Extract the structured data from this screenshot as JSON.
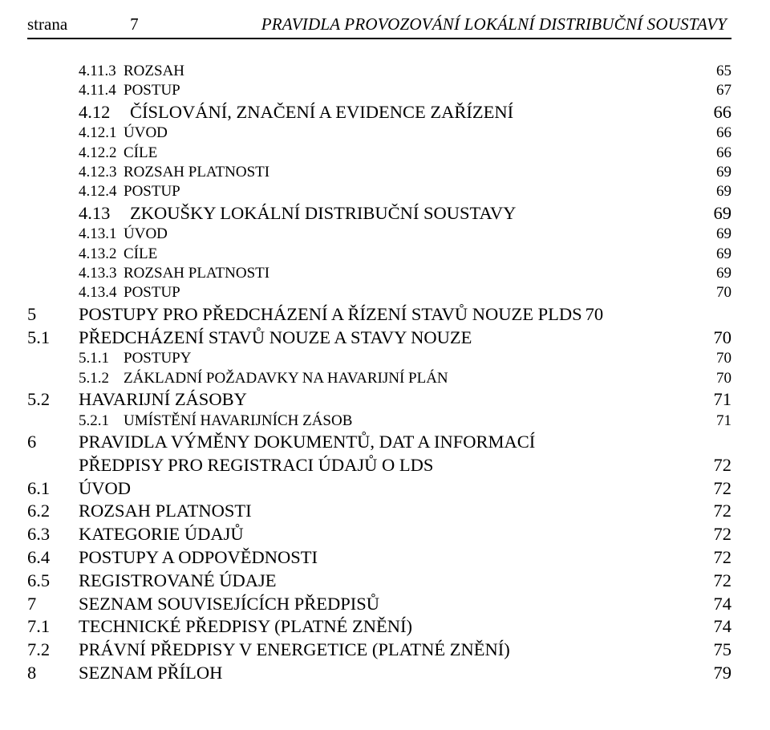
{
  "header": {
    "strana_label": "strana",
    "page_number": "7",
    "title": "PRAVIDLA PROVOZOVÁNÍ LOKÁLNÍ DISTRIBUČNÍ SOUSTAVY"
  },
  "toc": [
    {
      "level": 3,
      "num": "4.11.3",
      "text": "ROZSAH",
      "page": "65"
    },
    {
      "level": 3,
      "num": "4.11.4",
      "text": "POSTUP",
      "page": "67"
    },
    {
      "level": 2,
      "num": "4.12",
      "text": "ČÍSLOVÁNÍ, ZNAČENÍ A EVIDENCE ZAŘÍZENÍ",
      "page": "66"
    },
    {
      "level": 3,
      "num": "4.12.1",
      "text": "ÚVOD",
      "page": "66"
    },
    {
      "level": 3,
      "num": "4.12.2",
      "text": "CÍLE",
      "page": "66"
    },
    {
      "level": 3,
      "num": "4.12.3",
      "text": "ROZSAH PLATNOSTI",
      "page": "69"
    },
    {
      "level": 3,
      "num": "4.12.4",
      "text": "POSTUP",
      "page": "69"
    },
    {
      "level": 2,
      "num": "4.13",
      "text": "ZKOUŠKY LOKÁLNÍ DISTRIBUČNÍ SOUSTAVY",
      "page": "69"
    },
    {
      "level": 3,
      "num": "4.13.1",
      "text": "ÚVOD",
      "page": "69"
    },
    {
      "level": 3,
      "num": "4.13.2",
      "text": "CÍLE",
      "page": "69"
    },
    {
      "level": 3,
      "num": "4.13.3",
      "text": "ROZSAH PLATNOSTI",
      "page": "69"
    },
    {
      "level": 3,
      "num": "4.13.4",
      "text": "POSTUP",
      "page": "70"
    },
    {
      "level": 0,
      "num": "5",
      "text": "POSTUPY PRO PŘEDCHÁZENÍ A ŘÍZENÍ STAVŮ NOUZE PLDS",
      "page": "70",
      "nolead": true
    },
    {
      "level": 1,
      "num": "5.1",
      "text": "PŘEDCHÁZENÍ STAVŮ NOUZE A STAVY NOUZE",
      "page": "70"
    },
    {
      "level": 3,
      "num": "5.1.1",
      "text": "POSTUPY",
      "page": "70"
    },
    {
      "level": 3,
      "num": "5.1.2",
      "text": "ZÁKLADNÍ POŽADAVKY NA HAVARIJNÍ PLÁN",
      "page": "70"
    },
    {
      "level": 1,
      "num": "5.2",
      "text": "HAVARIJNÍ ZÁSOBY",
      "page": "71"
    },
    {
      "level": 3,
      "num": "5.2.1",
      "text": "UMÍSTĚNÍ HAVARIJNÍCH ZÁSOB",
      "page": "71"
    },
    {
      "level": 0,
      "num": "6",
      "text": "PRAVIDLA VÝMĚNY DOKUMENTŮ, DAT A INFORMACÍ",
      "text2": "PŘEDPISY PRO REGISTRACI ÚDAJŮ O LDS",
      "page": "72",
      "wrap": true
    },
    {
      "level": 1,
      "num": "6.1",
      "text": "ÚVOD",
      "page": "72"
    },
    {
      "level": 1,
      "num": "6.2",
      "text": "ROZSAH PLATNOSTI",
      "page": "72"
    },
    {
      "level": 1,
      "num": "6.3",
      "text": "KATEGORIE ÚDAJŮ",
      "page": "72"
    },
    {
      "level": 1,
      "num": "6.4",
      "text": "POSTUPY A ODPOVĚDNOSTI",
      "page": "72"
    },
    {
      "level": 1,
      "num": "6.5",
      "text": "REGISTROVANÉ ÚDAJE",
      "page": "72"
    },
    {
      "level": 0,
      "num": "7",
      "text": "SEZNAM SOUVISEJÍCÍCH PŘEDPISŮ",
      "page": "74"
    },
    {
      "level": 1,
      "num": "7.1",
      "text": "TECHNICKÉ PŘEDPISY (PLATNÉ ZNĚNÍ)",
      "page": "74"
    },
    {
      "level": 1,
      "num": "7.2",
      "text": "PRÁVNÍ PŘEDPISY V ENERGETICE (PLATNÉ ZNĚNÍ)",
      "page": "75"
    },
    {
      "level": 0,
      "num": "8",
      "text": "SEZNAM PŘÍLOH",
      "page": "79"
    }
  ]
}
